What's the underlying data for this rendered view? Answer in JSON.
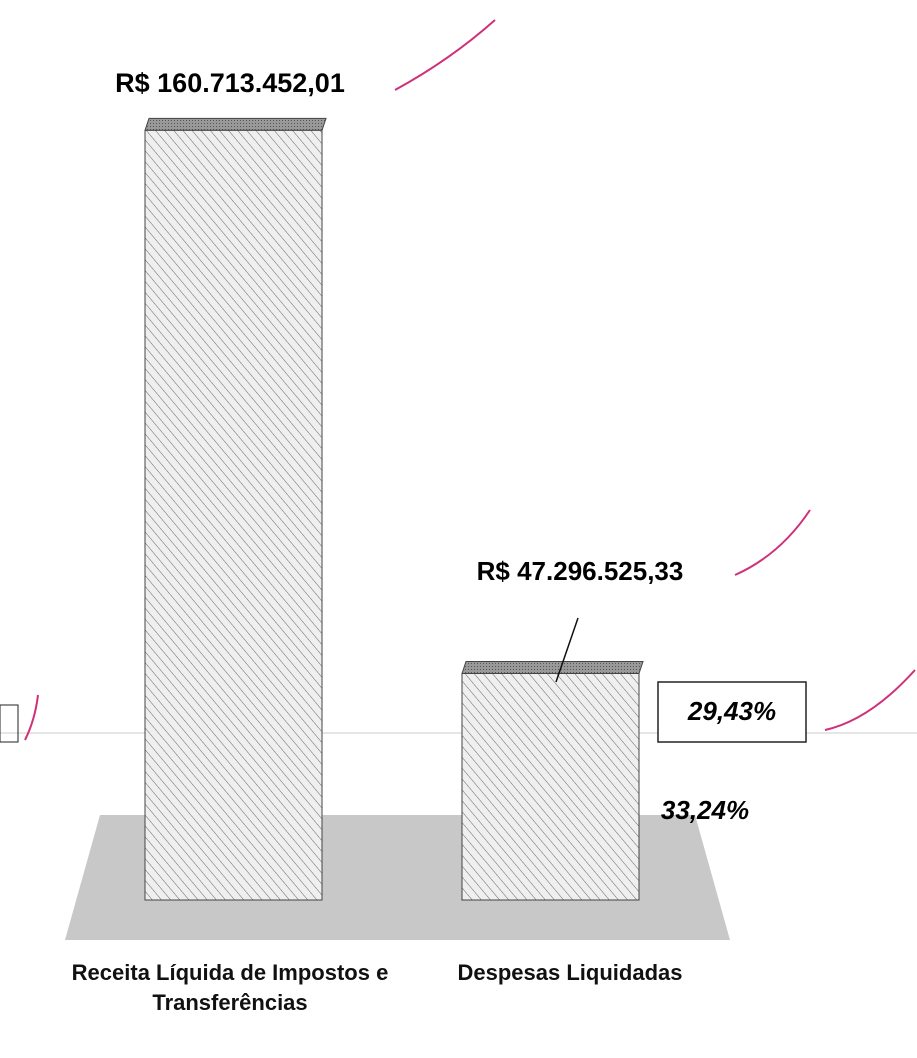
{
  "chart_data": {
    "type": "bar",
    "categories": [
      "Receita Líquida de Impostos e Transferências",
      "Despesas Liquidadas"
    ],
    "values": [
      160713452.01,
      47296525.33
    ],
    "value_labels": [
      "R$ 160.713.452,01",
      "R$ 47.296.525,33"
    ],
    "ylim": [
      0,
      180000000
    ],
    "color": "#e6e6e6",
    "annotations": [
      "29,43%",
      "33,24%"
    ]
  }
}
